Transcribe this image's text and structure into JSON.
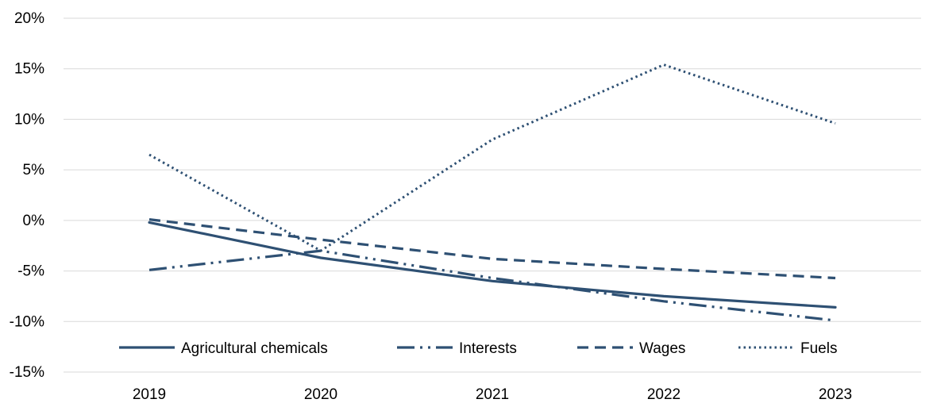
{
  "chart_data": {
    "type": "line",
    "title": "",
    "xlabel": "",
    "ylabel": "",
    "categories": [
      "2019",
      "2020",
      "2021",
      "2022",
      "2023"
    ],
    "ylim": [
      -15,
      20
    ],
    "yticks": [
      20,
      15,
      10,
      5,
      0,
      -5,
      -10,
      -15
    ],
    "ytick_labels": [
      "20%",
      "15%",
      "10%",
      "5%",
      "0%",
      "-5%",
      "-10%",
      "-15%"
    ],
    "grid": true,
    "legend_position": "bottom-inside",
    "series": [
      {
        "name": "Agricultural chemicals",
        "style": "solid",
        "color": "#2e5073",
        "values": [
          -0.2,
          -3.7,
          -6.0,
          -7.5,
          -8.6
        ]
      },
      {
        "name": "Interests",
        "style": "dash-dot-dot",
        "color": "#2e5073",
        "values": [
          -4.9,
          -3.0,
          -5.7,
          -8.0,
          -9.9
        ]
      },
      {
        "name": "Wages",
        "style": "dashed",
        "color": "#2e5073",
        "values": [
          0.1,
          -1.9,
          -3.8,
          -4.8,
          -5.7
        ]
      },
      {
        "name": "Fuels",
        "style": "dotted",
        "color": "#2e5073",
        "values": [
          6.5,
          -3.0,
          8.0,
          15.4,
          9.6
        ]
      }
    ]
  }
}
